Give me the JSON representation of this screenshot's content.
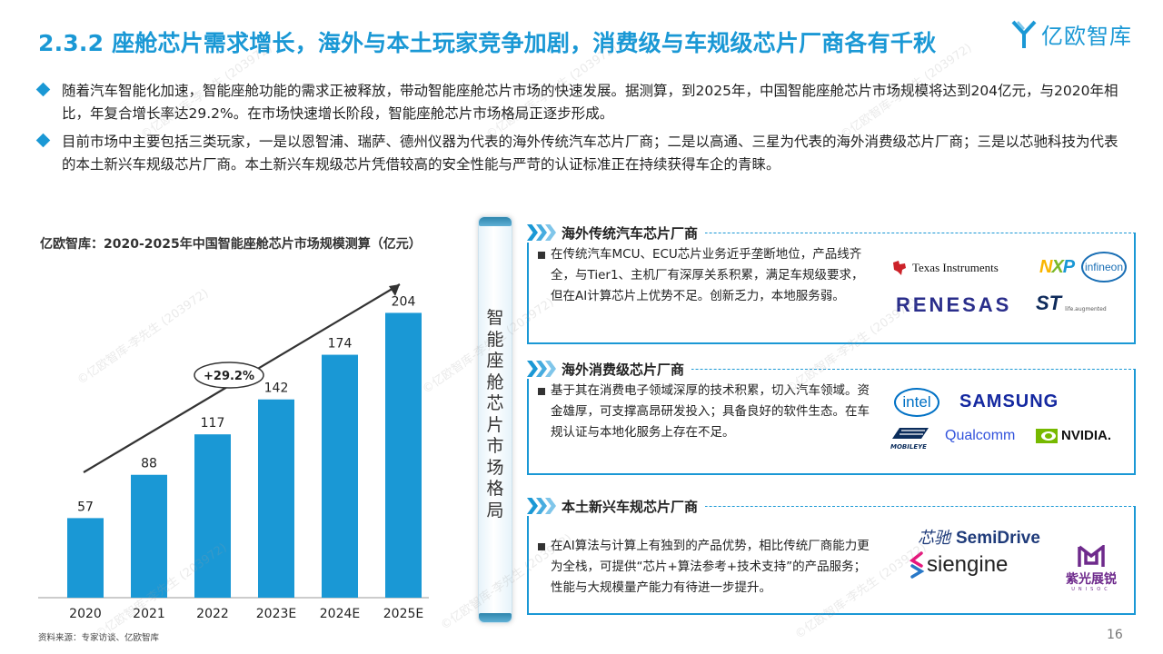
{
  "header": {
    "title": "2.3.2 座舱芯片需求增长，海外与本土玩家竞争加剧，消费级与车规级芯片厂商各有千秋",
    "brand": "亿欧智库"
  },
  "bullets": [
    "随着汽车智能化加速，智能座舱功能的需求正被释放，带动智能座舱芯片市场的快速发展。据测算，到2025年，中国智能座舱芯片市场规模将达到204亿元，与2020年相比，年复合增长率达29.2%。在市场快速增长阶段，智能座舱芯片市场格局正逐步形成。",
    "目前市场中主要包括三类玩家，一是以恩智浦、瑞萨、德州仪器为代表的海外传统汽车芯片厂商；二是以高通、三星为代表的海外消费级芯片厂商；三是以芯驰科技为代表的本土新兴车规级芯片厂商。本土新兴车规级芯片凭借较高的安全性能与严苛的认证标准正在持续获得车企的青睐。"
  ],
  "chart_data": {
    "type": "bar",
    "title": "亿欧智库：2020-2025年中国智能座舱芯片市场规模测算（亿元）",
    "categories": [
      "2020",
      "2021",
      "2022",
      "2023E",
      "2024E",
      "2025E"
    ],
    "values": [
      57,
      88,
      117,
      142,
      174,
      204
    ],
    "annotation": "+29.2%",
    "bar_color": "#1a98d5",
    "ylim": [
      0,
      240
    ],
    "grid": false
  },
  "panel": {
    "label": [
      "智",
      "能",
      "座",
      "舱",
      "芯",
      "片",
      "市",
      "场",
      "格",
      "局"
    ]
  },
  "categories": [
    {
      "title": "海外传统汽车芯片厂商",
      "text": "在传统汽车MCU、ECU芯片业务近乎垄断地位，产品线齐全，与Tier1、主机厂有深厚关系积累，满足车规级要求，但在AI计算芯片上优势不足。创新乏力，本地服务弱。",
      "logos": [
        "Texas Instruments",
        "NXP",
        "infineon",
        "RENESAS",
        "ST",
        "life.augmented"
      ]
    },
    {
      "title": "海外消费级芯片厂商",
      "text": "基于其在消费电子领域深厚的技术积累，切入汽车领域。资金雄厚，可支撑高昂研发投入；具备良好的软件生态。在车规认证与本地化服务上存在不足。",
      "logos": [
        "intel",
        "SAMSUNG",
        "MOBILEYE",
        "Qualcomm",
        "NVIDIA."
      ]
    },
    {
      "title": "本土新兴车规芯片厂商",
      "text": "在AI算法与计算上有独到的产品优势，相比传统厂商能力更为全栈，可提供“芯片+算法参考+技术支持”的产品服务；性能与大规模量产能力有待进一步提升。",
      "logos": [
        "芯驰",
        "SemiDrive",
        "siengine",
        "紫光展锐",
        "UNISOC"
      ]
    }
  ],
  "footer": {
    "source": "资料来源：专家访谈、亿欧智库",
    "page": "16"
  },
  "watermark": "©亿欧智库-李先生 (203972)",
  "colors": {
    "accent": "#1a98d5",
    "ti_red": "#cc2229",
    "nxp_yellow": "#f9b500",
    "nxp_green": "#7bb829",
    "renesas_blue": "#2a2e8b",
    "samsung_blue": "#1428a0",
    "nvidia_green": "#76b900",
    "siengine_pink": "#e6177d",
    "siengine_blue": "#2878c8",
    "unisoc_purple": "#6e2a8c"
  }
}
